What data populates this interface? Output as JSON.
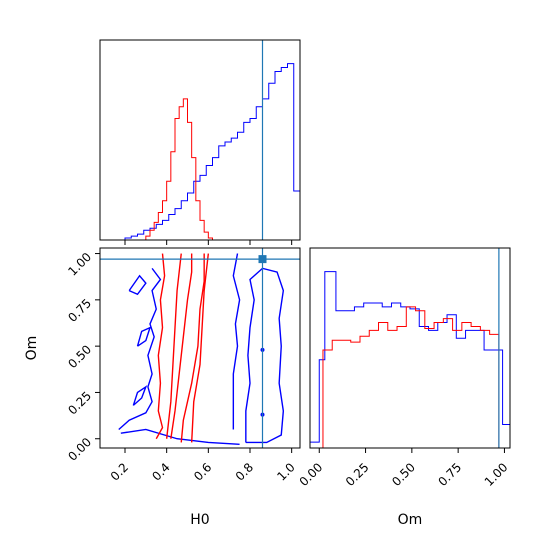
{
  "chart_data": {
    "type": "corner",
    "parameters": [
      "H0",
      "Om"
    ],
    "truth": {
      "H0": 0.86,
      "Om": 0.97
    },
    "colors": {
      "run_blue": "#0000ff",
      "run_red": "#ff0000",
      "truth": "#1f77b4"
    },
    "panels": [
      {
        "id": "hist-H0",
        "type": "step-histogram",
        "xlim": [
          0.08,
          1.04
        ],
        "xticks": [
          0.2,
          0.4,
          0.6,
          0.8,
          1.0
        ],
        "tick_labels_shown": false,
        "series": [
          {
            "color": "blue",
            "edges": [
              0.08,
              0.11,
              0.14,
              0.17,
              0.2,
              0.23,
              0.26,
              0.29,
              0.32,
              0.35,
              0.38,
              0.41,
              0.44,
              0.47,
              0.5,
              0.53,
              0.56,
              0.59,
              0.62,
              0.65,
              0.68,
              0.71,
              0.74,
              0.77,
              0.8,
              0.83,
              0.86,
              0.89,
              0.92,
              0.95,
              0.98,
              1.01,
              1.04
            ],
            "heights": [
              0,
              0,
              0,
              0,
              0.01,
              0.02,
              0.03,
              0.05,
              0.06,
              0.08,
              0.1,
              0.13,
              0.16,
              0.2,
              0.24,
              0.3,
              0.33,
              0.38,
              0.42,
              0.48,
              0.5,
              0.52,
              0.55,
              0.6,
              0.62,
              0.68,
              0.72,
              0.8,
              0.86,
              0.88,
              0.9,
              0.25
            ]
          },
          {
            "color": "red",
            "edges": [
              0.3,
              0.32,
              0.34,
              0.36,
              0.38,
              0.4,
              0.42,
              0.44,
              0.46,
              0.48,
              0.5,
              0.52,
              0.54,
              0.56,
              0.58,
              0.6,
              0.62
            ],
            "heights": [
              0.02,
              0.05,
              0.09,
              0.14,
              0.2,
              0.3,
              0.45,
              0.62,
              0.68,
              0.72,
              0.6,
              0.42,
              0.2,
              0.1,
              0.04,
              0.01
            ]
          }
        ]
      },
      {
        "id": "hist-Om",
        "type": "step-histogram",
        "xlim": [
          -0.05,
          1.03
        ],
        "xticks": [
          0.0,
          0.25,
          0.5,
          0.75,
          1.0
        ],
        "tick_labels": [
          "0.00",
          "0.25",
          "0.50",
          "0.75",
          "1.00"
        ],
        "xlabel": "Om",
        "series": [
          {
            "color": "blue",
            "edges": [
              -0.05,
              0.0,
              0.03,
              0.09,
              0.14,
              0.19,
              0.24,
              0.29,
              0.34,
              0.39,
              0.44,
              0.49,
              0.54,
              0.59,
              0.64,
              0.69,
              0.74,
              0.79,
              0.84,
              0.89,
              0.94,
              0.99,
              1.03
            ],
            "heights": [
              0.03,
              0.45,
              0.9,
              0.7,
              0.7,
              0.72,
              0.74,
              0.74,
              0.72,
              0.74,
              0.72,
              0.71,
              0.62,
              0.6,
              0.64,
              0.68,
              0.56,
              0.6,
              0.6,
              0.5,
              0.5,
              0.12
            ]
          },
          {
            "color": "red",
            "edges": [
              0.0,
              0.02,
              0.07,
              0.12,
              0.17,
              0.22,
              0.27,
              0.32,
              0.37,
              0.42,
              0.47,
              0.52,
              0.57,
              0.62,
              0.67,
              0.72,
              0.77,
              0.82,
              0.87,
              0.92,
              0.97,
              1.0
            ],
            "heights": [
              0.0,
              0.5,
              0.55,
              0.55,
              0.54,
              0.57,
              0.6,
              0.64,
              0.6,
              0.62,
              0.72,
              0.7,
              0.61,
              0.64,
              0.66,
              0.6,
              0.64,
              0.62,
              0.6,
              0.58,
              0.0
            ]
          }
        ]
      },
      {
        "id": "contour-H0-Om",
        "type": "contour",
        "xlim": [
          0.08,
          1.04
        ],
        "ylim": [
          -0.05,
          1.03
        ],
        "xticks": [
          0.2,
          0.4,
          0.6,
          0.8,
          1.0
        ],
        "xtick_labels": [
          "0.2",
          "0.4",
          "0.6",
          "0.8",
          "1.0"
        ],
        "yticks": [
          0.0,
          0.25,
          0.5,
          0.75,
          1.0
        ],
        "ytick_labels": [
          "0.00",
          "0.25",
          "0.50",
          "0.75",
          "1.00"
        ],
        "xlabel": "H0",
        "ylabel": "Om",
        "contours": [
          {
            "color": "blue",
            "points": [
              [
                0.78,
                -0.02
              ],
              [
                0.88,
                -0.02
              ],
              [
                0.95,
                0.02
              ],
              [
                0.96,
                0.15
              ],
              [
                0.94,
                0.3
              ],
              [
                0.95,
                0.5
              ],
              [
                0.94,
                0.65
              ],
              [
                0.96,
                0.8
              ],
              [
                0.93,
                0.9
              ],
              [
                0.86,
                0.92
              ],
              [
                0.8,
                0.86
              ],
              [
                0.82,
                0.75
              ],
              [
                0.8,
                0.6
              ],
              [
                0.79,
                0.45
              ],
              [
                0.8,
                0.3
              ],
              [
                0.78,
                0.15
              ],
              [
                0.78,
                -0.02
              ]
            ]
          },
          {
            "color": "blue",
            "points": [
              [
                0.17,
                0.05
              ],
              [
                0.22,
                0.1
              ],
              [
                0.3,
                0.14
              ],
              [
                0.33,
                0.2
              ],
              [
                0.31,
                0.28
              ],
              [
                0.33,
                0.35
              ],
              [
                0.31,
                0.45
              ],
              [
                0.34,
                0.55
              ],
              [
                0.32,
                0.62
              ],
              [
                0.35,
                0.7
              ],
              [
                0.33,
                0.8
              ],
              [
                0.37,
                0.86
              ],
              [
                0.33,
                0.92
              ]
            ]
          },
          {
            "color": "blue",
            "points": [
              [
                0.18,
                0.03
              ],
              [
                0.3,
                0.05
              ],
              [
                0.45,
                0.0
              ],
              [
                0.6,
                -0.02
              ],
              [
                0.75,
                -0.03
              ]
            ]
          },
          {
            "color": "blue",
            "points": [
              [
                0.72,
                0.05
              ],
              [
                0.72,
                0.35
              ],
              [
                0.74,
                0.5
              ],
              [
                0.73,
                0.62
              ],
              [
                0.75,
                0.75
              ],
              [
                0.72,
                0.88
              ],
              [
                0.74,
                1.0
              ]
            ]
          },
          {
            "color": "red",
            "points": [
              [
                0.35,
                0.0
              ],
              [
                0.38,
                0.06
              ],
              [
                0.36,
                0.15
              ],
              [
                0.37,
                0.3
              ],
              [
                0.36,
                0.45
              ],
              [
                0.38,
                0.6
              ],
              [
                0.37,
                0.75
              ],
              [
                0.39,
                0.88
              ],
              [
                0.38,
                1.0
              ]
            ]
          },
          {
            "color": "red",
            "points": [
              [
                0.47,
                -0.02
              ],
              [
                0.48,
                0.1
              ],
              [
                0.52,
                0.3
              ],
              [
                0.55,
                0.5
              ],
              [
                0.56,
                0.7
              ],
              [
                0.58,
                0.85
              ],
              [
                0.58,
                1.0
              ]
            ]
          },
          {
            "color": "red",
            "points": [
              [
                0.42,
                0.0
              ],
              [
                0.44,
                0.15
              ],
              [
                0.46,
                0.35
              ],
              [
                0.48,
                0.55
              ],
              [
                0.5,
                0.75
              ],
              [
                0.52,
                0.9
              ],
              [
                0.52,
                1.0
              ]
            ]
          },
          {
            "color": "red",
            "points": [
              [
                0.4,
                0.0
              ],
              [
                0.42,
                0.2
              ],
              [
                0.43,
                0.4
              ],
              [
                0.44,
                0.6
              ],
              [
                0.45,
                0.8
              ],
              [
                0.47,
                1.0
              ]
            ]
          },
          {
            "color": "red",
            "points": [
              [
                0.52,
                -0.02
              ],
              [
                0.53,
                0.2
              ],
              [
                0.56,
                0.4
              ],
              [
                0.57,
                0.6
              ],
              [
                0.58,
                0.8
              ],
              [
                0.6,
                1.0
              ]
            ]
          },
          {
            "color": "blue",
            "points": [
              [
                0.22,
                0.8
              ],
              [
                0.26,
                0.78
              ],
              [
                0.3,
                0.84
              ],
              [
                0.27,
                0.88
              ],
              [
                0.22,
                0.8
              ]
            ]
          },
          {
            "color": "blue",
            "points": [
              [
                0.24,
                0.18
              ],
              [
                0.28,
                0.22
              ],
              [
                0.3,
                0.28
              ],
              [
                0.26,
                0.25
              ],
              [
                0.24,
                0.18
              ]
            ]
          },
          {
            "color": "blue",
            "points": [
              [
                0.26,
                0.5
              ],
              [
                0.3,
                0.53
              ],
              [
                0.32,
                0.6
              ],
              [
                0.28,
                0.58
              ],
              [
                0.26,
                0.5
              ]
            ]
          }
        ],
        "points": [
          [
            0.86,
            0.13
          ],
          [
            0.86,
            0.48
          ]
        ]
      }
    ]
  }
}
